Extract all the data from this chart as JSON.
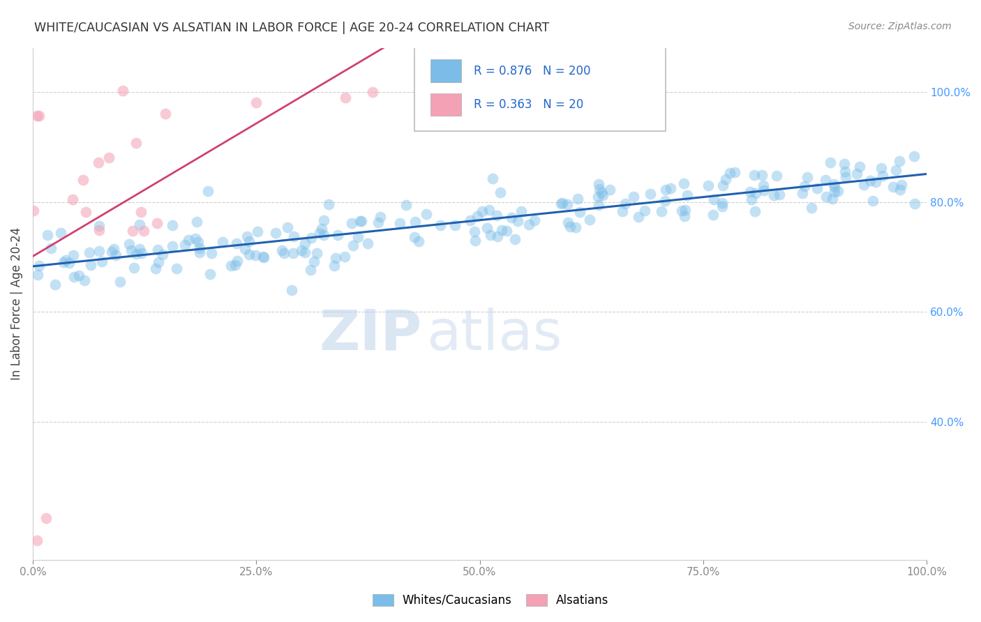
{
  "title": "WHITE/CAUCASIAN VS ALSATIAN IN LABOR FORCE | AGE 20-24 CORRELATION CHART",
  "source_text": "Source: ZipAtlas.com",
  "ylabel": "In Labor Force | Age 20-24",
  "watermark_zip": "ZIP",
  "watermark_atlas": "atlas",
  "blue_R": 0.876,
  "blue_N": 200,
  "pink_R": 0.363,
  "pink_N": 20,
  "blue_color": "#7bbde8",
  "pink_color": "#f4a0b5",
  "blue_line_color": "#2060b0",
  "pink_line_color": "#d04070",
  "blue_label": "Whites/Caucasians",
  "pink_label": "Alsatians",
  "title_color": "#333333",
  "source_color": "#888888",
  "axis_label_color": "#444444",
  "tick_color": "#888888",
  "grid_color": "#d0d0d0",
  "right_ytick_color": "#4499ff",
  "right_yticks": [
    0.4,
    0.6,
    0.8,
    1.0
  ],
  "right_ytick_labels": [
    "40.0%",
    "60.0%",
    "80.0%",
    "100.0%"
  ],
  "xlim": [
    0.0,
    1.0
  ],
  "ylim": [
    0.15,
    1.08
  ],
  "blue_seed": 42,
  "pink_seed": 99
}
